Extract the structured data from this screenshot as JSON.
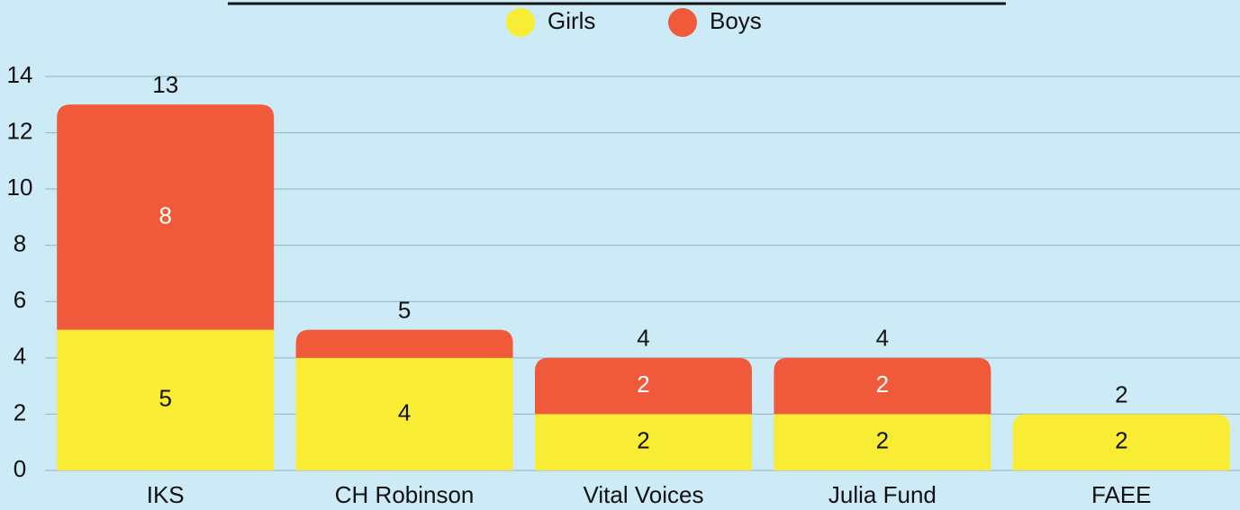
{
  "chart_data": {
    "type": "stacked_bar",
    "categories": [
      "IKS",
      "CH Robinson",
      "Vital Voices",
      "Julia Fund",
      "FAEE"
    ],
    "series": [
      {
        "name": "Girls",
        "color": "#f9ec34",
        "values": [
          5,
          4,
          2,
          2,
          2
        ]
      },
      {
        "name": "Boys",
        "color": "#f05a3a",
        "values": [
          8,
          1,
          2,
          2,
          0
        ]
      }
    ],
    "totals": [
      13,
      5,
      4,
      4,
      2
    ],
    "ylim": [
      0,
      14
    ],
    "yticks": [
      0,
      2,
      4,
      6,
      8,
      10,
      12,
      14
    ],
    "grid": true,
    "legend": "top"
  }
}
